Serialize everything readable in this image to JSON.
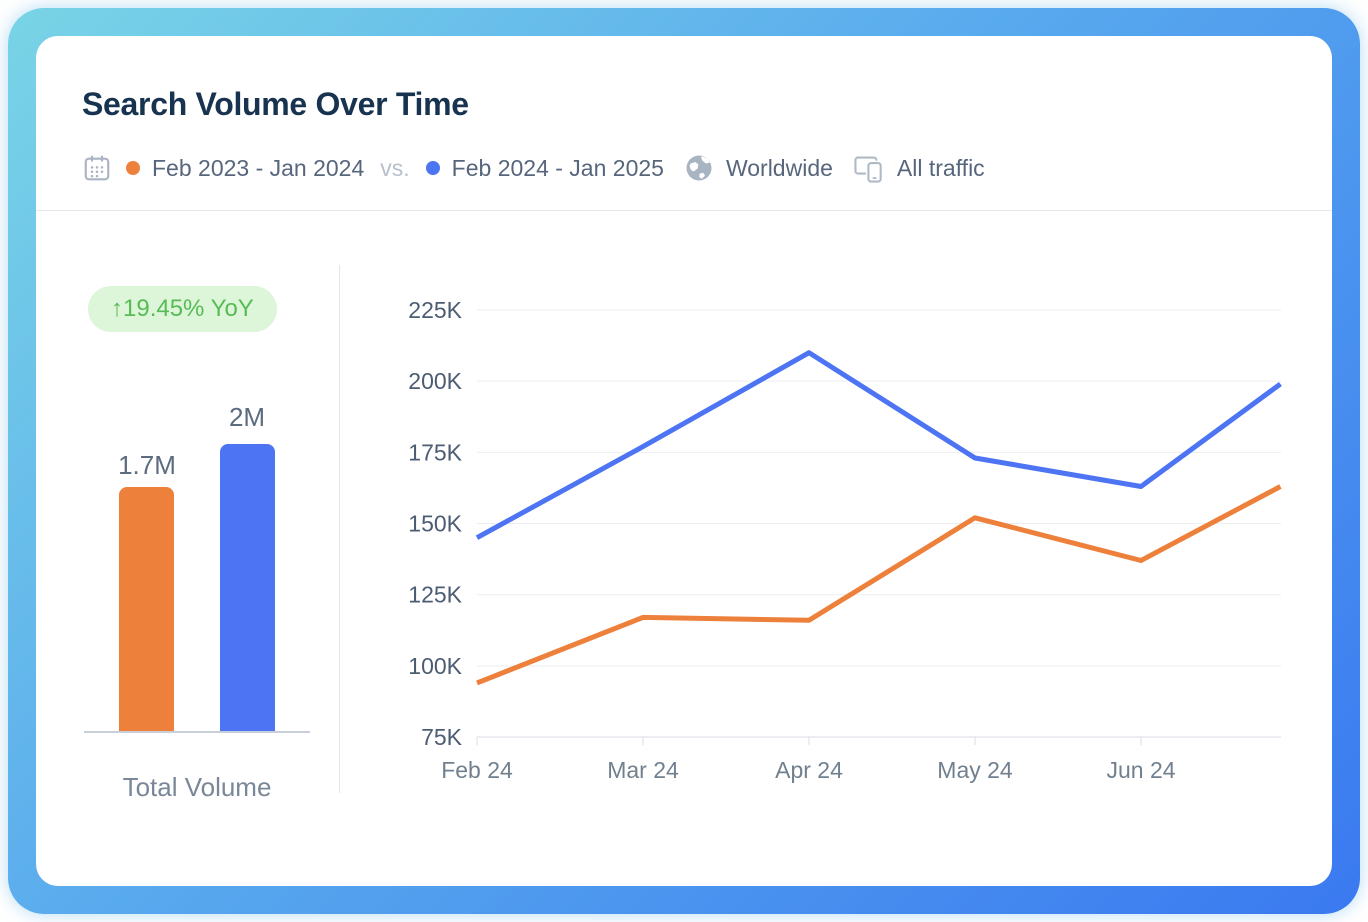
{
  "header": {
    "title": "Search Volume Over Time",
    "filters": {
      "calendar_icon": "calendar-icon",
      "period_a_label": "Feb 2023 - Jan 2024",
      "vs_label": "vs.",
      "period_b_label": "Feb 2024 - Jan 2025",
      "globe_icon": "globe-icon",
      "region_label": "Worldwide",
      "devices_icon": "desktop-mobile-icon",
      "traffic_label": "All traffic"
    }
  },
  "colors": {
    "previous_period_orange": "#ED813B",
    "current_period_blue": "#4D74F2",
    "badge_bg_green": "#DDF5D9",
    "badge_text_green": "#58BC55",
    "title_navy": "#17334F",
    "frame_gradient": [
      "#79D4E6",
      "#3A79F0"
    ]
  },
  "summary": {
    "yoy_badge": "↑19.45% YoY",
    "axis_label": "Total Volume"
  },
  "chart_data": [
    {
      "type": "bar",
      "title": "Total Volume",
      "categories": [
        "Feb 2023 - Jan 2024",
        "Feb 2024 - Jan 2025"
      ],
      "values": [
        1700000,
        2000000
      ],
      "value_labels": [
        "1.7M",
        "2M"
      ],
      "colors": [
        "#ED813B",
        "#4D74F2"
      ],
      "ylim": [
        0,
        2000000
      ],
      "grid": "off"
    },
    {
      "type": "line",
      "x_tick_labels": [
        "Feb 24",
        "Mar 24",
        "Apr 24",
        "May 24",
        "Jun 24"
      ],
      "y_tick_labels": [
        "225K",
        "200K",
        "175K",
        "150K",
        "125K",
        "100K",
        "75K"
      ],
      "ylim": [
        75000,
        225000
      ],
      "grid": "horizontal",
      "legend_position": "none",
      "series": [
        {
          "name": "Feb 2024 - Jan 2025",
          "color": "#4D74F2",
          "x_months": [
            0,
            1,
            2,
            3,
            4,
            4.84
          ],
          "values": [
            145000,
            177000,
            210000,
            173000,
            163000,
            199000
          ]
        },
        {
          "name": "Feb 2023 - Jan 2024",
          "color": "#ED813B",
          "x_months": [
            0,
            1,
            2,
            3,
            4,
            4.84
          ],
          "values": [
            94000,
            117000,
            116000,
            152000,
            137000,
            163000
          ]
        }
      ],
      "note_right_edge": "lines continue past Jun 24 and clip at the plot's right edge"
    }
  ]
}
